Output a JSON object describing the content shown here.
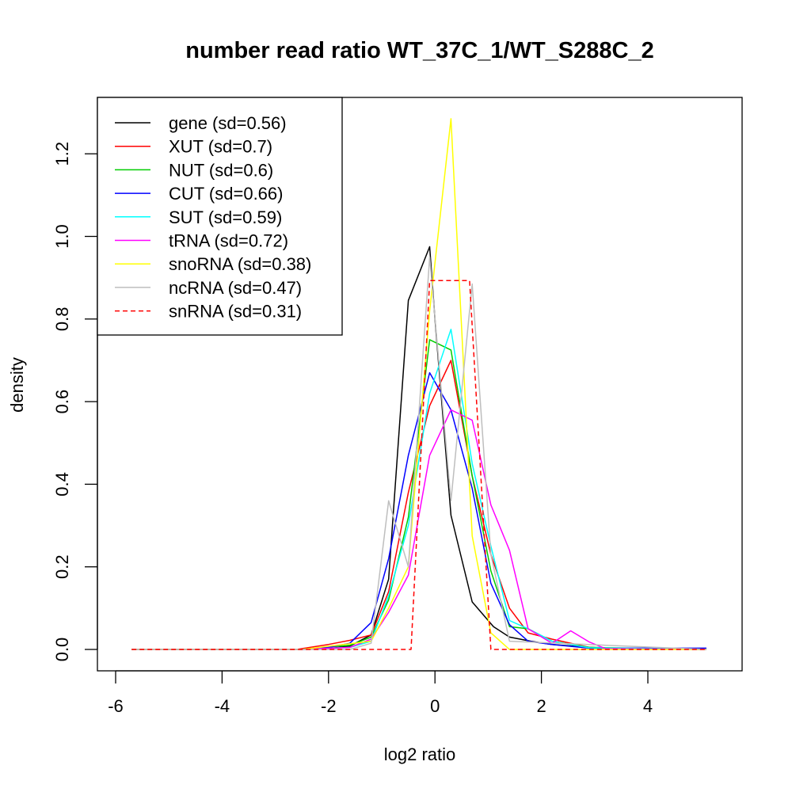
{
  "chart_data": {
    "type": "line",
    "title": "number read ratio WT_37C_1/WT_S288C_2",
    "xlabel": "log2 ratio",
    "ylabel": "density",
    "xlim": [
      -6,
      5.5
    ],
    "ylim": [
      -0.05,
      1.32
    ],
    "x_ticks": [
      -6,
      -4,
      -2,
      0,
      2,
      4
    ],
    "x_tick_labels": [
      "-6",
      "-4",
      "-2",
      "0",
      "2",
      "4"
    ],
    "y_ticks": [
      0,
      0.2,
      0.4,
      0.6,
      0.8,
      1.0,
      1.2
    ],
    "y_tick_labels": [
      "0.0",
      "0.2",
      "0.4",
      "0.6",
      "0.8",
      "1.0",
      "1.2"
    ],
    "grid": false,
    "legend_position": "top-left",
    "series": [
      {
        "name": "gene (sd=0.56)",
        "color": "#000000",
        "dash": false,
        "x": [
          -5.7,
          -2.5,
          -2.0,
          -1.6,
          -1.2,
          -0.87,
          -0.5,
          -0.1,
          0.0,
          0.3,
          0.7,
          1.1,
          1.4,
          1.8,
          2.2,
          2.9,
          3.5,
          4.2,
          5.1
        ],
        "y": [
          0,
          0,
          0.002,
          0.008,
          0.035,
          0.17,
          0.845,
          0.975,
          0.8,
          0.325,
          0.115,
          0.055,
          0.03,
          0.02,
          0.012,
          0.005,
          0.002,
          0.001,
          0.002
        ]
      },
      {
        "name": "XUT (sd=0.7)",
        "color": "#ff0000",
        "dash": false,
        "x": [
          -5.7,
          -2.6,
          -2.0,
          -1.6,
          -1.2,
          -0.87,
          -0.5,
          -0.1,
          0.3,
          0.7,
          1.05,
          1.4,
          1.75,
          2.2,
          2.9,
          3.5,
          5.1
        ],
        "y": [
          0,
          0,
          0.012,
          0.022,
          0.035,
          0.14,
          0.38,
          0.59,
          0.7,
          0.42,
          0.23,
          0.1,
          0.04,
          0.025,
          0.005,
          0.002,
          0
        ]
      },
      {
        "name": "NUT (sd=0.6)",
        "color": "#00cd00",
        "dash": false,
        "x": [
          -5.7,
          -2.5,
          -1.6,
          -1.2,
          -0.87,
          -0.5,
          -0.1,
          0.3,
          0.7,
          1.05,
          1.4,
          1.75,
          2.2,
          2.9,
          5.1
        ],
        "y": [
          0,
          0,
          0.01,
          0.03,
          0.12,
          0.32,
          0.75,
          0.725,
          0.42,
          0.19,
          0.055,
          0.05,
          0.02,
          0.005,
          0
        ]
      },
      {
        "name": "CUT (sd=0.66)",
        "color": "#0000ff",
        "dash": false,
        "x": [
          -5.7,
          -2.5,
          -2.0,
          -1.6,
          -1.2,
          -0.87,
          -0.5,
          -0.1,
          0.3,
          0.7,
          1.05,
          1.4,
          1.75,
          2.2,
          2.9,
          5.1
        ],
        "y": [
          0,
          0,
          0.005,
          0.015,
          0.065,
          0.22,
          0.47,
          0.67,
          0.58,
          0.39,
          0.16,
          0.06,
          0.02,
          0.012,
          0.003,
          0.003
        ]
      },
      {
        "name": "SUT (sd=0.59)",
        "color": "#00ffff",
        "dash": false,
        "x": [
          -5.7,
          -2.5,
          -1.6,
          -1.2,
          -0.87,
          -0.5,
          -0.1,
          0.3,
          0.7,
          1.05,
          1.4,
          1.75,
          2.2,
          2.9,
          5.1
        ],
        "y": [
          0,
          0,
          0.005,
          0.02,
          0.13,
          0.3,
          0.62,
          0.775,
          0.45,
          0.25,
          0.07,
          0.05,
          0.02,
          0.004,
          0
        ]
      },
      {
        "name": "tRNA (sd=0.72)",
        "color": "#ff00ff",
        "dash": false,
        "x": [
          -5.7,
          -2.5,
          -1.6,
          -1.2,
          -0.87,
          -0.5,
          -0.1,
          0.3,
          0.7,
          1.05,
          1.4,
          1.75,
          2.2,
          2.55,
          2.9,
          3.2,
          5.1
        ],
        "y": [
          0,
          0,
          0.005,
          0.025,
          0.09,
          0.18,
          0.47,
          0.58,
          0.555,
          0.35,
          0.24,
          0.05,
          0.015,
          0.045,
          0.018,
          0.002,
          0
        ]
      },
      {
        "name": "snoRNA (sd=0.38)",
        "color": "#ffff00",
        "dash": false,
        "x": [
          -5.7,
          -2.5,
          -1.2,
          -0.87,
          -0.5,
          -0.1,
          0.3,
          0.7,
          1.05,
          1.4,
          5.1
        ],
        "y": [
          0,
          0,
          0.02,
          0.1,
          0.2,
          0.82,
          1.285,
          0.275,
          0.04,
          0,
          0
        ]
      },
      {
        "name": "ncRNA (sd=0.47)",
        "color": "#bebebe",
        "dash": false,
        "x": [
          -5.7,
          -2.5,
          -1.6,
          -1.2,
          -0.87,
          -0.5,
          -0.1,
          0.3,
          0.7,
          1.05,
          1.4,
          5.1
        ],
        "y": [
          0,
          0,
          0,
          0.015,
          0.36,
          0.2,
          0.95,
          0.36,
          0.885,
          0.23,
          0.02,
          0
        ]
      },
      {
        "name": "snRNA (sd=0.31)",
        "color": "#ff0000",
        "dash": true,
        "x": [
          -5.7,
          -0.45,
          -0.1,
          0.65,
          1.05,
          5.1
        ],
        "y": [
          0,
          0,
          0.893,
          0.893,
          0,
          0
        ]
      }
    ]
  }
}
